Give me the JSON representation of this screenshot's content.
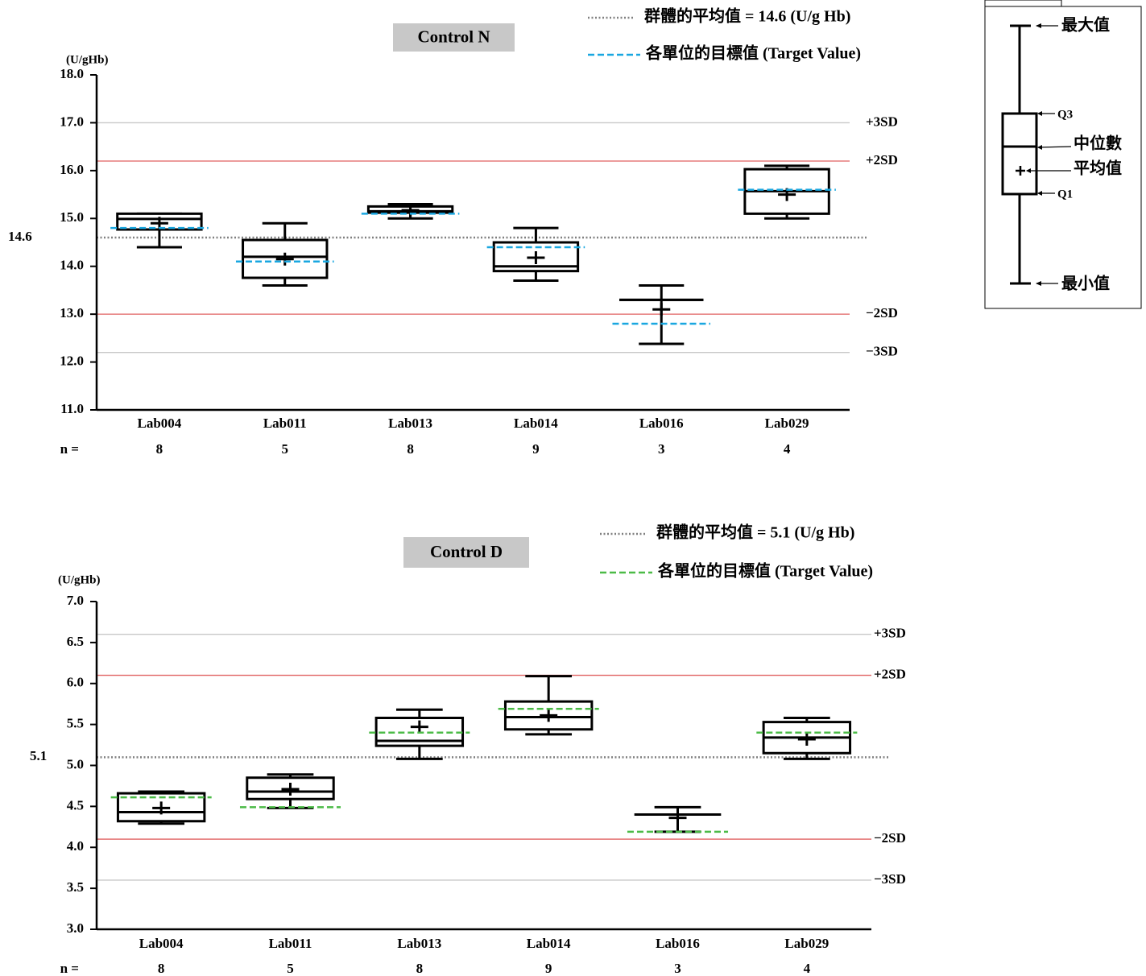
{
  "chart_data": [
    {
      "type": "box",
      "title": "Control N",
      "y_unit": "(U/gHb)",
      "n_label": "n =",
      "mean_legend": "群體的平均值 = 14.6 (U/g Hb)",
      "target_legend": "各單位的目標值 (Target Value)",
      "mean_color": "#808080",
      "target_color": "#1aa7e0",
      "ylim": [
        11,
        18
      ],
      "yticks": [
        {
          "value": 11,
          "label": "11.0"
        },
        {
          "value": 12,
          "label": "12.0"
        },
        {
          "value": 13,
          "label": "13.0"
        },
        {
          "value": 14,
          "label": "14.0"
        },
        {
          "value": 15,
          "label": "15.0"
        },
        {
          "value": 16,
          "label": "16.0"
        },
        {
          "value": 17,
          "label": "17.0"
        },
        {
          "value": 18,
          "label": "18.0"
        }
      ],
      "mean": 14.6,
      "sd_lines": [
        {
          "label": "+3SD",
          "value": 17.0,
          "color": "#c8c8c8"
        },
        {
          "label": "+2SD",
          "value": 16.2,
          "color": "#e06060"
        },
        {
          "label": "−2SD",
          "value": 13.0,
          "color": "#e06060"
        },
        {
          "label": "−3SD",
          "value": 12.2,
          "color": "#c8c8c8"
        }
      ],
      "categories": [
        "Lab004",
        "Lab011",
        "Lab013",
        "Lab014",
        "Lab016",
        "Lab029"
      ],
      "n": [
        8,
        5,
        8,
        9,
        3,
        4
      ],
      "boxes": [
        {
          "min": 14.4,
          "q1": 14.77,
          "median": 14.99,
          "q3": 15.1,
          "max": 15.1,
          "mean": 14.9,
          "target": 14.8
        },
        {
          "min": 13.6,
          "q1": 13.76,
          "median": 14.2,
          "q3": 14.55,
          "max": 14.9,
          "mean": 14.15,
          "target": 14.1
        },
        {
          "min": 15.0,
          "q1": 15.12,
          "median": 15.15,
          "q3": 15.25,
          "max": 15.3,
          "mean": 15.17,
          "target": 15.1
        },
        {
          "min": 13.7,
          "q1": 13.9,
          "median": 14.0,
          "q3": 14.5,
          "max": 14.8,
          "mean": 14.18,
          "target": 14.4
        },
        {
          "min": 12.38,
          "q1": 13.3,
          "median": 13.3,
          "q3": 13.3,
          "max": 13.6,
          "mean": 13.1,
          "target": 12.8
        },
        {
          "min": 15.0,
          "q1": 15.1,
          "median": 15.57,
          "q3": 16.03,
          "max": 16.1,
          "mean": 15.5,
          "target": 15.6
        }
      ]
    },
    {
      "type": "box",
      "title": "Control D",
      "y_unit": "(U/gHb)",
      "n_label": "n =",
      "mean_legend": "群體的平均值 = 5.1 (U/g Hb)",
      "target_legend": "各單位的目標值 (Target Value)",
      "mean_color": "#808080",
      "target_color": "#4cbb47",
      "ylim": [
        3,
        7
      ],
      "yticks": [
        {
          "value": 3,
          "label": "3.0"
        },
        3.5,
        {
          "value": 4,
          "label": "4.0"
        },
        4.5,
        {
          "value": 5,
          "label": "5.0"
        },
        5.5,
        {
          "value": 6,
          "label": "6.0"
        },
        6.5,
        {
          "value": 7,
          "label": "7.0"
        }
      ],
      "mean": 5.1,
      "sd_lines": [
        {
          "label": "+3SD",
          "value": 6.6,
          "color": "#c8c8c8"
        },
        {
          "label": "+2SD",
          "value": 6.1,
          "color": "#e06060"
        },
        {
          "label": "−2SD",
          "value": 4.1,
          "color": "#e06060"
        },
        {
          "label": "−3SD",
          "value": 3.6,
          "color": "#c8c8c8"
        }
      ],
      "categories": [
        "Lab004",
        "Lab011",
        "Lab013",
        "Lab014",
        "Lab016",
        "Lab029"
      ],
      "n": [
        8,
        5,
        8,
        9,
        3,
        4
      ],
      "boxes": [
        {
          "min": 4.29,
          "q1": 4.32,
          "median": 4.43,
          "q3": 4.66,
          "max": 4.68,
          "mean": 4.48,
          "target": 4.61
        },
        {
          "min": 4.48,
          "q1": 4.59,
          "median": 4.68,
          "q3": 4.85,
          "max": 4.89,
          "mean": 4.71,
          "target": 4.49
        },
        {
          "min": 5.08,
          "q1": 5.24,
          "median": 5.3,
          "q3": 5.58,
          "max": 5.68,
          "mean": 5.47,
          "target": 5.4
        },
        {
          "min": 5.38,
          "q1": 5.44,
          "median": 5.59,
          "q3": 5.78,
          "max": 6.09,
          "mean": 5.61,
          "target": 5.69
        },
        {
          "min": 4.19,
          "q1": 4.4,
          "median": 4.4,
          "q3": 4.4,
          "max": 4.49,
          "mean": 4.36,
          "target": 4.19
        },
        {
          "min": 5.08,
          "q1": 5.15,
          "median": 5.34,
          "q3": 5.53,
          "max": 5.58,
          "mean": 5.32,
          "target": 5.4
        }
      ]
    }
  ],
  "box_key": {
    "max": "最大值",
    "q3": "Q3",
    "median": "中位數",
    "mean": "平均值",
    "q1": "Q1",
    "min": "最小值"
  }
}
